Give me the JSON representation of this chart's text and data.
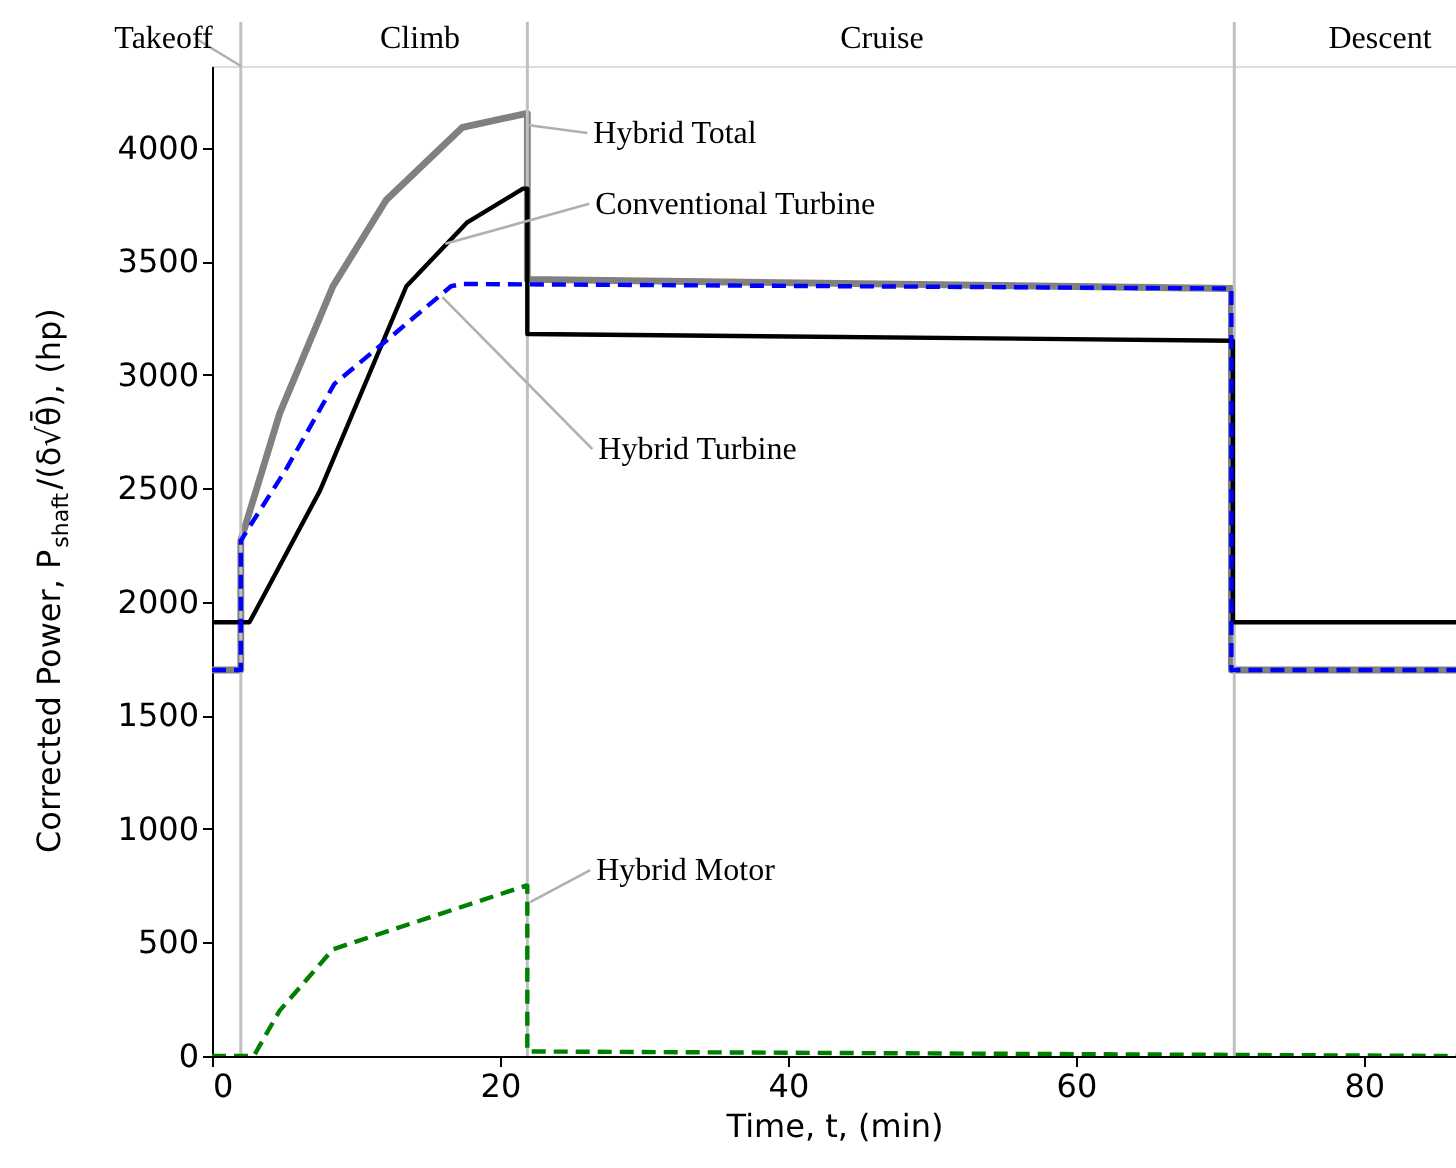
{
  "chart_data": {
    "type": "line",
    "xlabel": "Time, t, (min)",
    "ylabel": "Corrected Power, P$_{shaft}$/(δ√θ̄), (hp)",
    "xlim": [
      0,
      86.4
    ],
    "ylim": [
      0,
      4360
    ],
    "xticks": [
      0,
      20,
      40,
      60,
      80
    ],
    "yticks": [
      0,
      500,
      1000,
      1500,
      2000,
      2500,
      3000,
      3500,
      4000
    ],
    "grid": false,
    "series": [
      {
        "color": "#808080",
        "line_style": "solid",
        "x": [
          0,
          2,
          2,
          4.7,
          8.4,
          12.1,
          17.4,
          21.8,
          21.9,
          21.9,
          70.8,
          70.8,
          86.4
        ],
        "values": [
          1700,
          1700,
          2270,
          2830,
          3390,
          3770,
          4090,
          4150,
          4150,
          3420,
          3380,
          1700,
          1700
        ]
      },
      {
        "color": "#000000",
        "line_style": "solid",
        "x": [
          0,
          2.6,
          7.5,
          13.5,
          17.7,
          21.6,
          21.9,
          21.9,
          70.9,
          70.9,
          86.4
        ],
        "values": [
          1910,
          1910,
          2490,
          3390,
          3670,
          3820,
          3820,
          3180,
          3150,
          1910,
          1910
        ]
      },
      {
        "color": "#0000ff",
        "line_style": "dashed",
        "x": [
          0,
          2,
          2,
          5.2,
          8.5,
          12.1,
          16.6,
          17.4,
          70.8,
          70.8,
          86.4
        ],
        "values": [
          1700,
          1700,
          2270,
          2590,
          2960,
          3150,
          3390,
          3400,
          3380,
          1700,
          1700
        ]
      },
      {
        "color": "#008000",
        "line_style": "dashed",
        "x": [
          0,
          2.9,
          4.7,
          8.4,
          21.8,
          21.9,
          21.9,
          86.4
        ],
        "values": [
          0,
          0,
          200,
          470,
          750,
          750,
          20,
          0
        ]
      }
    ],
    "ref_lines": [
      {
        "axis": "x",
        "value": 2,
        "color": "#c0c0c0"
      },
      {
        "axis": "x",
        "value": 21.9,
        "color": "#c0c0c0"
      },
      {
        "axis": "x",
        "value": 71,
        "color": "#c0c0c0"
      }
    ],
    "annotations": [
      {
        "text": "Takeoff",
        "x": 2,
        "y": 4360
      },
      "Climb",
      "Cruise",
      "Descent",
      {
        "text": "Hybrid Total",
        "x": 21.9,
        "y": 4100
      },
      {
        "text": "Conventional Turbine",
        "x": 16.2,
        "y": 3577
      },
      {
        "text": "Hybrid Turbine",
        "x": 16.0,
        "y": 3342
      },
      {
        "text": "Hybrid Motor",
        "x": 22.1,
        "y": 678
      }
    ]
  }
}
